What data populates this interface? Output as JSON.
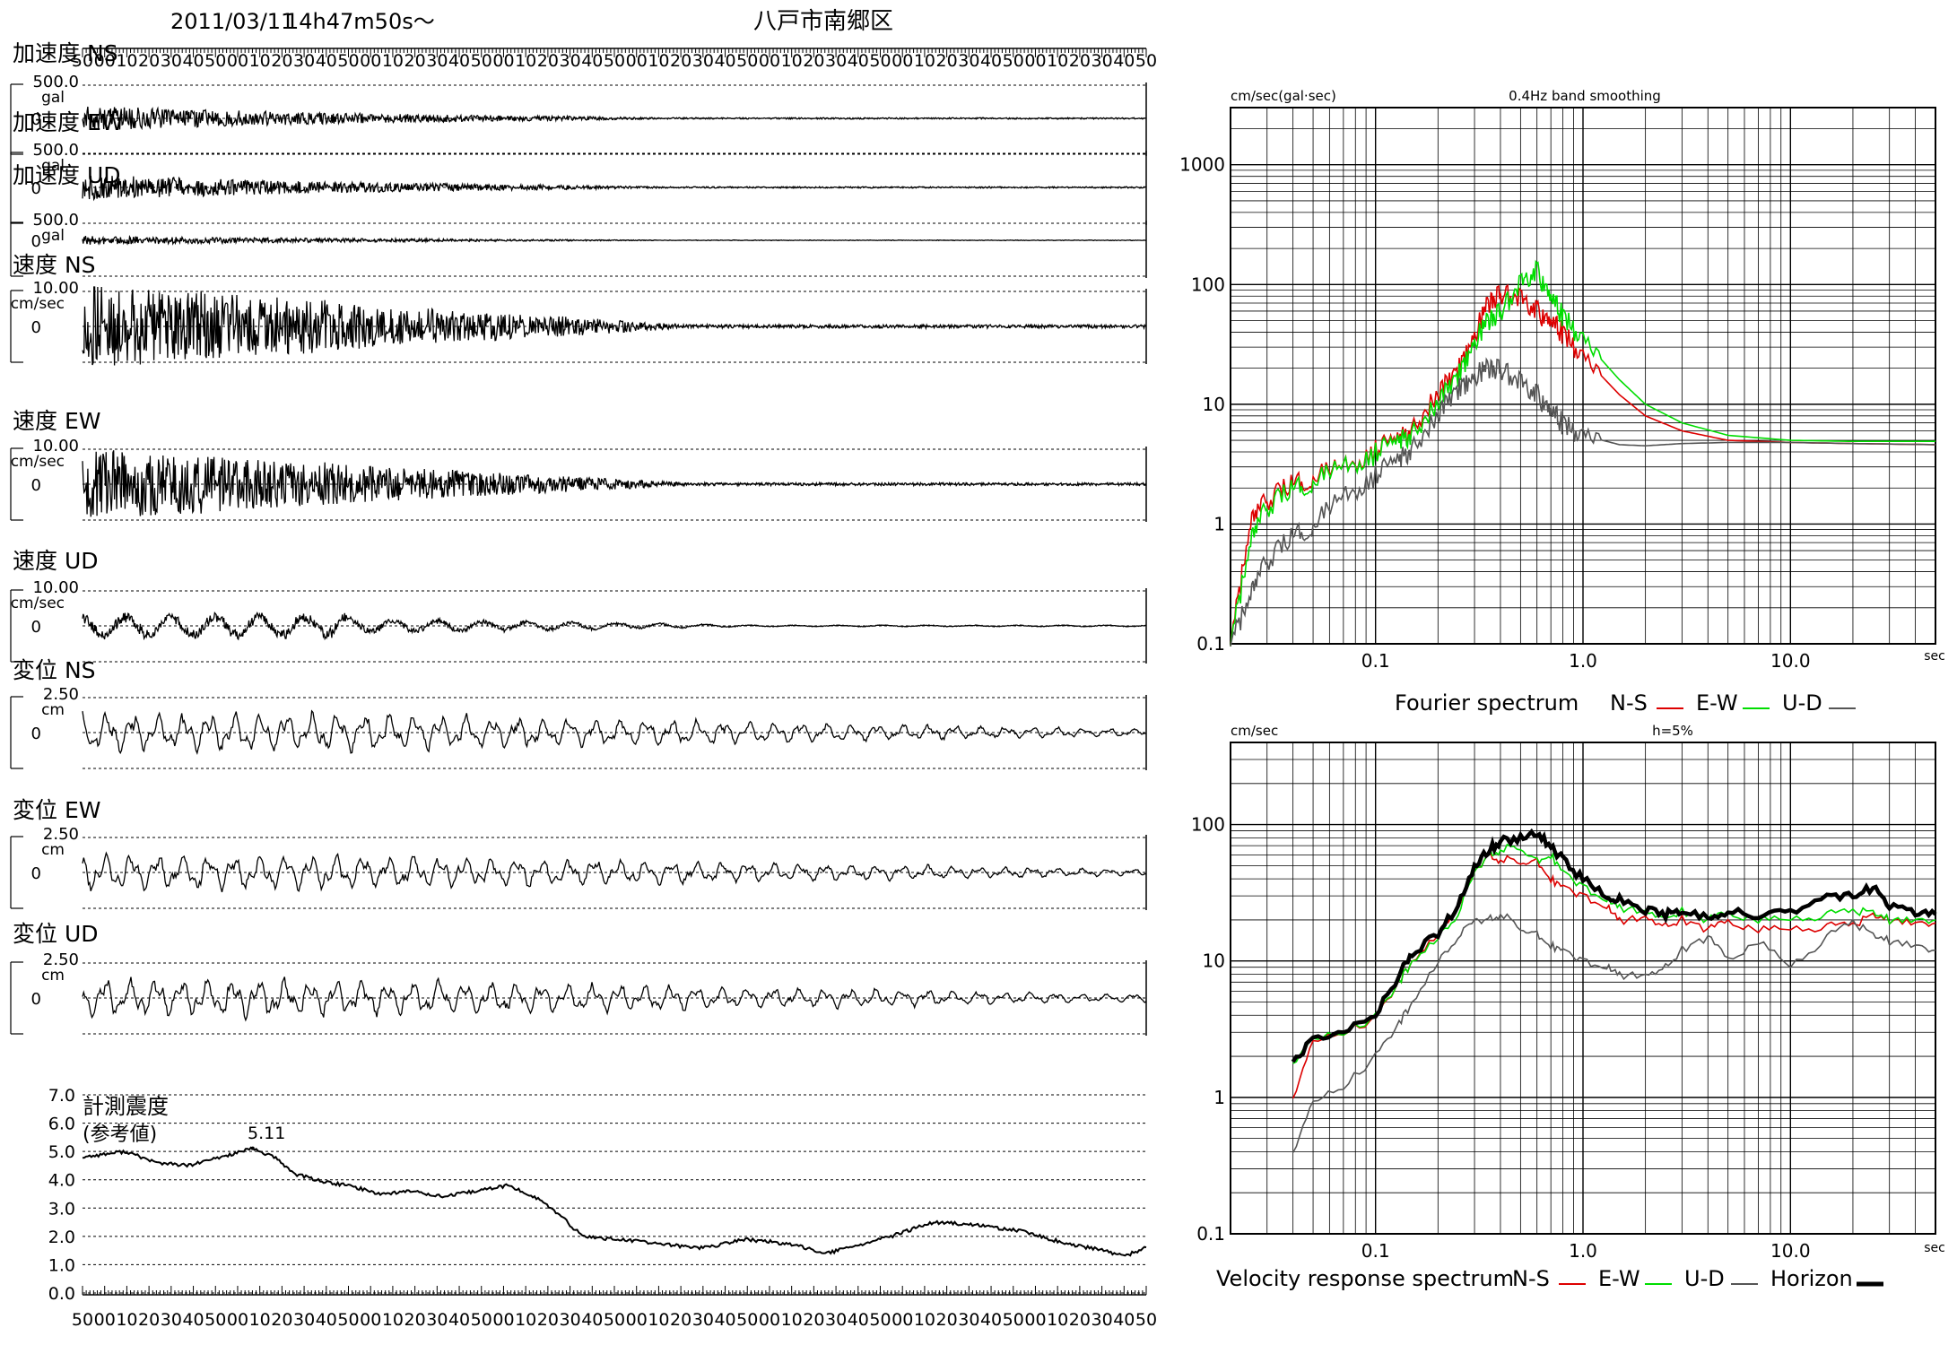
{
  "header": {
    "date": "2011/03/11",
    "time": "14h47m50s～",
    "station": "八戸市南郷区"
  },
  "waveforms": {
    "time_axis_labels": [
      "50",
      "00",
      "10",
      "20",
      "30",
      "40",
      "50",
      "00",
      "10",
      "20",
      "30",
      "40",
      "50",
      "00",
      "10",
      "20",
      "30",
      "40",
      "50",
      "00",
      "10",
      "20",
      "30",
      "40",
      "50",
      "00",
      "10",
      "20",
      "30",
      "40",
      "50",
      "00",
      "10",
      "20",
      "30",
      "40",
      "50",
      "00",
      "10",
      "20",
      "30",
      "40",
      "50",
      "00",
      "10",
      "20",
      "30",
      "40",
      "50"
    ],
    "channels": [
      {
        "title": "加速度 NS",
        "max": "500.0",
        "unit": "gal",
        "zero": "0"
      },
      {
        "title": "加速度 EW",
        "max": "500.0",
        "unit": "gal",
        "zero": "0"
      },
      {
        "title": "加速度 UD",
        "max": "500.0",
        "unit": "gal",
        "zero": "0"
      },
      {
        "title": "速度 NS",
        "max": "10.00",
        "unit": "cm/sec",
        "zero": "0"
      },
      {
        "title": "速度 EW",
        "max": "10.00",
        "unit": "cm/sec",
        "zero": "0"
      },
      {
        "title": "速度 UD",
        "max": "10.00",
        "unit": "cm/sec",
        "zero": "0"
      },
      {
        "title": "変位 NS",
        "max": "2.50",
        "unit": "cm",
        "zero": "0"
      },
      {
        "title": "変位 EW",
        "max": "2.50",
        "unit": "cm",
        "zero": "0"
      },
      {
        "title": "変位 UD",
        "max": "2.50",
        "unit": "cm",
        "zero": "0"
      }
    ]
  },
  "intensity": {
    "title": "計測震度",
    "subtitle": "(参考値)",
    "peak_label": "5.11",
    "y_labels": [
      "7.0",
      "6.0",
      "5.0",
      "4.0",
      "3.0",
      "2.0",
      "1.0",
      "0.0"
    ]
  },
  "fourier": {
    "y_unit": "cm/sec(gal·sec)",
    "note": "0.4Hz band smoothing",
    "x_unit": "sec",
    "y_labels": [
      "1000",
      "100",
      "10",
      "1",
      "0.1"
    ],
    "x_labels": [
      "0.1",
      "1.0",
      "10.0"
    ],
    "legend_title": "Fourier spectrum",
    "legend": [
      {
        "name": "N-S",
        "color": "#dd0000"
      },
      {
        "name": "E-W",
        "color": "#00dd00"
      },
      {
        "name": "U-D",
        "color": "#555555"
      }
    ]
  },
  "response": {
    "y_unit": "cm/sec",
    "note": "h=5%",
    "x_unit": "sec",
    "y_labels": [
      "100",
      "10",
      "1",
      "0.1"
    ],
    "x_labels": [
      "0.1",
      "1.0",
      "10.0"
    ],
    "legend_title": "Velocity response spectrum",
    "legend": [
      {
        "name": "N-S",
        "color": "#dd0000"
      },
      {
        "name": "E-W",
        "color": "#00dd00"
      },
      {
        "name": "U-D",
        "color": "#555555"
      },
      {
        "name": "Horizon",
        "color": "#000000"
      }
    ]
  },
  "chart_data": [
    {
      "type": "line",
      "title": "計測震度 (参考値)",
      "ylim": [
        0,
        7
      ],
      "x_fraction": [
        0,
        0.04,
        0.07,
        0.1,
        0.13,
        0.16,
        0.18,
        0.2,
        0.23,
        0.25,
        0.28,
        0.31,
        0.34,
        0.37,
        0.4,
        0.43,
        0.45,
        0.47,
        0.5,
        0.53,
        0.55,
        0.58,
        0.6,
        0.62,
        0.65,
        0.68,
        0.7,
        0.73,
        0.76,
        0.8,
        0.84,
        0.86,
        0.88,
        0.9,
        0.93,
        0.96,
        0.98,
        1.0
      ],
      "values": [
        4.8,
        5.0,
        4.6,
        4.5,
        4.8,
        5.1,
        4.8,
        4.2,
        3.9,
        3.8,
        3.5,
        3.6,
        3.4,
        3.6,
        3.8,
        3.3,
        2.7,
        2.0,
        1.9,
        1.8,
        1.7,
        1.6,
        1.7,
        1.9,
        1.8,
        1.6,
        1.4,
        1.7,
        2.0,
        2.5,
        2.4,
        2.3,
        2.2,
        2.0,
        1.7,
        1.5,
        1.3,
        1.6
      ]
    },
    {
      "type": "line",
      "title": "Fourier spectrum",
      "x_scale": "log",
      "y_scale": "log",
      "xlim": [
        0.02,
        50
      ],
      "ylim": [
        0.1,
        3000
      ],
      "series": [
        {
          "name": "N-S",
          "x": [
            0.02,
            0.025,
            0.03,
            0.04,
            0.05,
            0.07,
            0.1,
            0.13,
            0.15,
            0.2,
            0.25,
            0.3,
            0.35,
            0.4,
            0.5,
            0.6,
            0.7,
            0.8,
            1.0,
            1.5,
            2,
            3,
            5,
            10,
            20,
            50
          ],
          "values": [
            0.1,
            1.0,
            1.6,
            2.2,
            2.5,
            3.0,
            4.2,
            5.2,
            6.5,
            12,
            20,
            40,
            70,
            85,
            75,
            60,
            50,
            40,
            25,
            12,
            8,
            6,
            5,
            4.8,
            4.7,
            4.6
          ]
        },
        {
          "name": "E-W",
          "x": [
            0.02,
            0.025,
            0.03,
            0.04,
            0.05,
            0.07,
            0.1,
            0.13,
            0.15,
            0.2,
            0.25,
            0.3,
            0.35,
            0.4,
            0.5,
            0.6,
            0.7,
            0.8,
            1.0,
            1.5,
            2,
            3,
            5,
            10,
            20,
            50
          ],
          "values": [
            0.1,
            0.7,
            1.4,
            2.0,
            2.3,
            3.0,
            4.0,
            5.0,
            6.0,
            10,
            18,
            35,
            50,
            60,
            100,
            130,
            80,
            55,
            35,
            16,
            10,
            7,
            5.5,
            5,
            4.9,
            4.9
          ]
        },
        {
          "name": "U-D",
          "x": [
            0.02,
            0.025,
            0.03,
            0.04,
            0.05,
            0.07,
            0.1,
            0.13,
            0.15,
            0.2,
            0.25,
            0.3,
            0.35,
            0.4,
            0.5,
            0.6,
            0.7,
            0.8,
            1.0,
            1.5,
            2,
            3,
            5,
            10,
            20,
            50
          ],
          "values": [
            0.1,
            0.25,
            0.5,
            0.8,
            1.0,
            1.7,
            2.6,
            3.5,
            4.5,
            8,
            14,
            18,
            20,
            20,
            15,
            12,
            9,
            7,
            5.5,
            4.6,
            4.5,
            4.7,
            4.8,
            4.8,
            4.7,
            4.6
          ]
        }
      ]
    },
    {
      "type": "line",
      "title": "Velocity response spectrum",
      "x_scale": "log",
      "y_scale": "log",
      "xlim": [
        0.02,
        50
      ],
      "ylim": [
        0.1,
        400
      ],
      "series": [
        {
          "name": "N-S",
          "x": [
            0.04,
            0.05,
            0.07,
            0.1,
            0.13,
            0.15,
            0.2,
            0.25,
            0.3,
            0.35,
            0.4,
            0.5,
            0.6,
            0.7,
            0.8,
            1.0,
            1.3,
            1.5,
            2,
            2.5,
            3,
            4,
            5,
            7,
            10,
            15,
            20,
            25,
            30,
            40,
            50
          ],
          "values": [
            1.0,
            2.5,
            3.0,
            3.8,
            7,
            10,
            16,
            25,
            45,
            60,
            55,
            55,
            55,
            40,
            35,
            30,
            25,
            20,
            20,
            18,
            20,
            17,
            19,
            17,
            17,
            18,
            19,
            21,
            20,
            19,
            19
          ]
        },
        {
          "name": "E-W",
          "x": [
            0.04,
            0.05,
            0.07,
            0.1,
            0.13,
            0.15,
            0.2,
            0.25,
            0.3,
            0.35,
            0.4,
            0.5,
            0.6,
            0.7,
            0.8,
            1.0,
            1.3,
            1.5,
            2,
            2.5,
            3,
            4,
            5,
            7,
            10,
            15,
            20,
            25,
            30,
            40,
            50
          ],
          "values": [
            1.8,
            2.6,
            3.0,
            3.9,
            7,
            10,
            15,
            22,
            45,
            60,
            65,
            70,
            55,
            60,
            45,
            35,
            28,
            25,
            22,
            21,
            23,
            20,
            22,
            20,
            20,
            22,
            24,
            22,
            20,
            20,
            20
          ]
        },
        {
          "name": "U-D",
          "x": [
            0.04,
            0.05,
            0.07,
            0.1,
            0.13,
            0.15,
            0.2,
            0.25,
            0.3,
            0.35,
            0.4,
            0.5,
            0.6,
            0.7,
            0.8,
            1.0,
            1.3,
            1.5,
            2,
            2.5,
            3,
            4,
            5,
            7,
            10,
            15,
            20,
            25,
            30,
            40,
            50
          ],
          "values": [
            0.4,
            0.9,
            1.2,
            2.0,
            3.5,
            5,
            10,
            15,
            20,
            20,
            22,
            18,
            16,
            13,
            12,
            10,
            9,
            8,
            7.5,
            9,
            12,
            15,
            10,
            14,
            9,
            15,
            20,
            15,
            14,
            13,
            12
          ]
        },
        {
          "name": "Horizon",
          "x": [
            0.04,
            0.05,
            0.07,
            0.1,
            0.13,
            0.15,
            0.2,
            0.25,
            0.3,
            0.35,
            0.4,
            0.5,
            0.6,
            0.7,
            0.8,
            1.0,
            1.3,
            1.5,
            2,
            2.5,
            3,
            4,
            5,
            7,
            10,
            15,
            20,
            25,
            30,
            40,
            50
          ],
          "values": [
            1.8,
            2.7,
            3.2,
            4.0,
            8,
            11,
            16,
            25,
            50,
            65,
            75,
            80,
            85,
            70,
            55,
            40,
            30,
            28,
            24,
            22,
            24,
            21,
            23,
            22,
            22,
            30,
            30,
            35,
            25,
            22,
            22
          ]
        }
      ]
    }
  ]
}
